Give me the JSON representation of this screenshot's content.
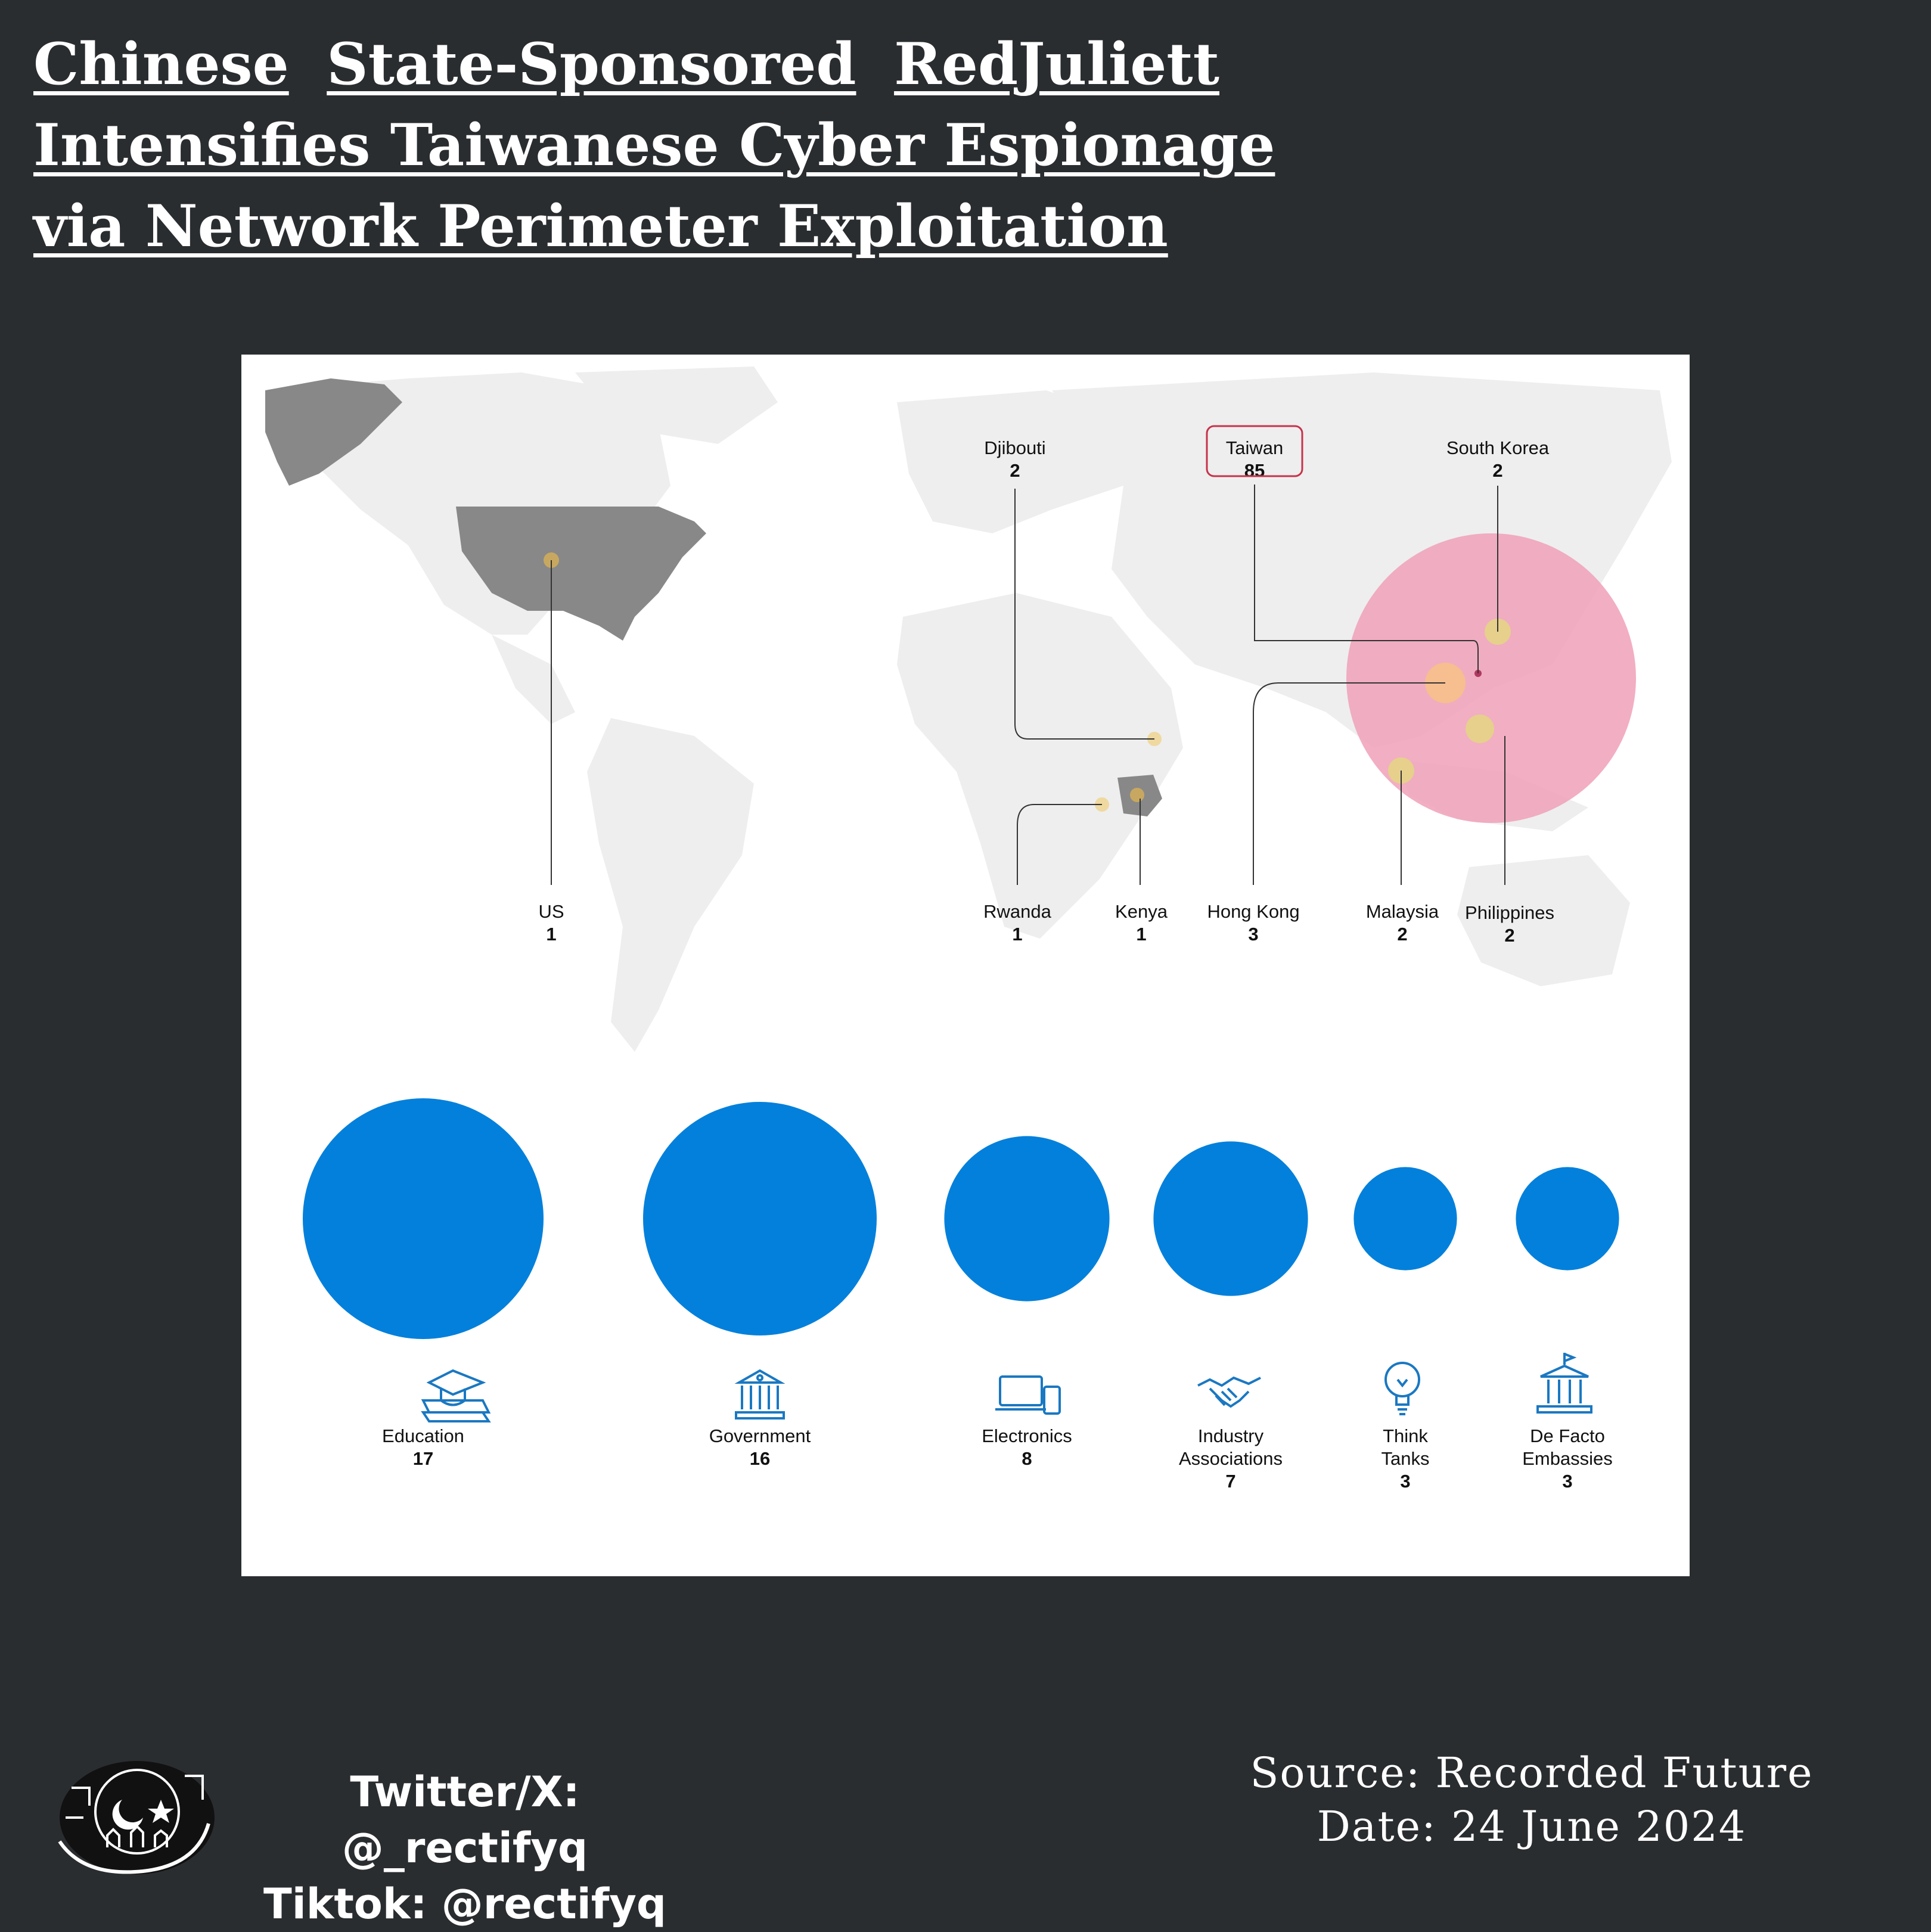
{
  "title": {
    "line1_words": [
      "Chinese",
      "State-Sponsored",
      "RedJuliett"
    ],
    "line2": "Intensifies Taiwanese Cyber Espionage",
    "line3": "via Network Perimeter Exploitation"
  },
  "map": {
    "locations": [
      {
        "key": "us",
        "name": "US",
        "count": "1"
      },
      {
        "key": "djibouti",
        "name": "Djibouti",
        "count": "2"
      },
      {
        "key": "taiwan",
        "name": "Taiwan",
        "count": "85"
      },
      {
        "key": "south_korea",
        "name": "South Korea",
        "count": "2"
      },
      {
        "key": "rwanda",
        "name": "Rwanda",
        "count": "1"
      },
      {
        "key": "kenya",
        "name": "Kenya",
        "count": "1"
      },
      {
        "key": "hong_kong",
        "name": "Hong Kong",
        "count": "3"
      },
      {
        "key": "malaysia",
        "name": "Malaysia",
        "count": "2"
      },
      {
        "key": "philippines",
        "name": "Philippines",
        "count": "2"
      }
    ],
    "colors": {
      "highlight": "#f0a0b8",
      "marker": "#c8a860",
      "land": "#eeeeee",
      "country": "#888888"
    }
  },
  "sectors": [
    {
      "name": "Education",
      "count": "17",
      "icon": "graduation-cap-icon"
    },
    {
      "name": "Government",
      "count": "16",
      "icon": "government-building-icon"
    },
    {
      "name": "Electronics",
      "count": "8",
      "icon": "devices-icon"
    },
    {
      "name_lines": [
        "Industry",
        "Associations"
      ],
      "count": "7",
      "icon": "handshake-icon"
    },
    {
      "name_lines": [
        "Think",
        "Tanks"
      ],
      "count": "3",
      "icon": "lightbulb-icon"
    },
    {
      "name_lines": [
        "De Facto",
        "Embassies"
      ],
      "count": "3",
      "icon": "embassy-icon"
    }
  ],
  "sector_color": "#0380db",
  "footer": {
    "twitter": "Twitter/X: @_rectifyq",
    "tiktok": "Tiktok: @rectifyq",
    "source": "Source: Recorded Future",
    "date": "Date: 24 June 2024"
  }
}
